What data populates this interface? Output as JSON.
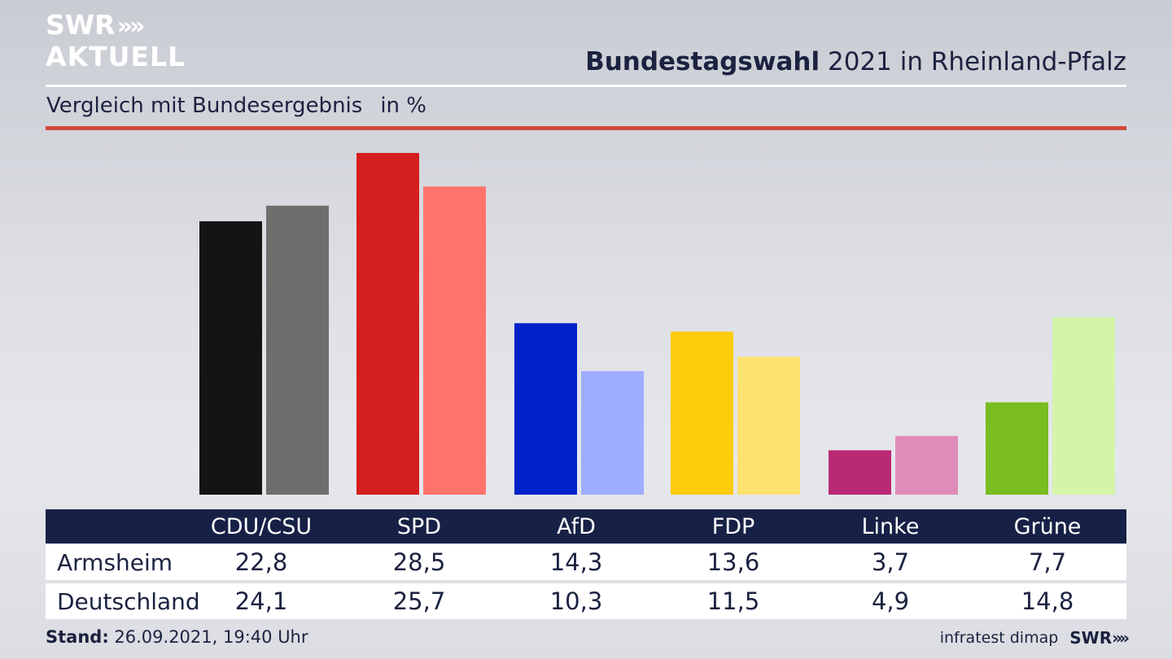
{
  "logo": {
    "line1": "SWR",
    "line2": "AKTUELL",
    "arrows": "»"
  },
  "header": {
    "title_bold": "Bundestagswahl",
    "title_rest": "2021 in Rheinland-Pfalz",
    "subtitle": "Vergleich mit Bundesergebnis",
    "unit": "in %"
  },
  "table": {
    "parties": [
      "CDU/CSU",
      "SPD",
      "AfD",
      "FDP",
      "Linke",
      "Grüne"
    ],
    "rows": [
      {
        "label": "Armsheim",
        "values": [
          "22,8",
          "28,5",
          "14,3",
          "13,6",
          "3,7",
          "7,7"
        ]
      },
      {
        "label": "Deutschland",
        "values": [
          "24,1",
          "25,7",
          "10,3",
          "11,5",
          "4,9",
          "14,8"
        ]
      }
    ]
  },
  "footer": {
    "stand_label": "Stand:",
    "stand_value": "26.09.2021, 19:40 Uhr",
    "source": "infratest dimap",
    "brand": "SWR"
  },
  "chart_data": {
    "type": "bar",
    "title": "Bundestagswahl 2021 in Rheinland-Pfalz",
    "subtitle": "Vergleich mit Bundesergebnis",
    "unit": "in %",
    "categories": [
      "CDU/CSU",
      "SPD",
      "AfD",
      "FDP",
      "Linke",
      "Grüne"
    ],
    "series": [
      {
        "name": "Armsheim",
        "values": [
          22.8,
          28.5,
          14.3,
          13.6,
          3.7,
          7.7
        ]
      },
      {
        "name": "Deutschland",
        "values": [
          24.1,
          25.7,
          10.3,
          11.5,
          4.9,
          14.8
        ]
      }
    ],
    "colors": {
      "Armsheim": [
        "#141414",
        "#d51e1e",
        "#0022c8",
        "#fbcb0c",
        "#b92a74",
        "#79bd20"
      ],
      "Deutschland": [
        "#6f6e6c",
        "#ff736c",
        "#9eadff",
        "#fde26f",
        "#e08cb8",
        "#d4f5a8"
      ]
    },
    "ylim": [
      0,
      28.5
    ],
    "grid": false
  }
}
